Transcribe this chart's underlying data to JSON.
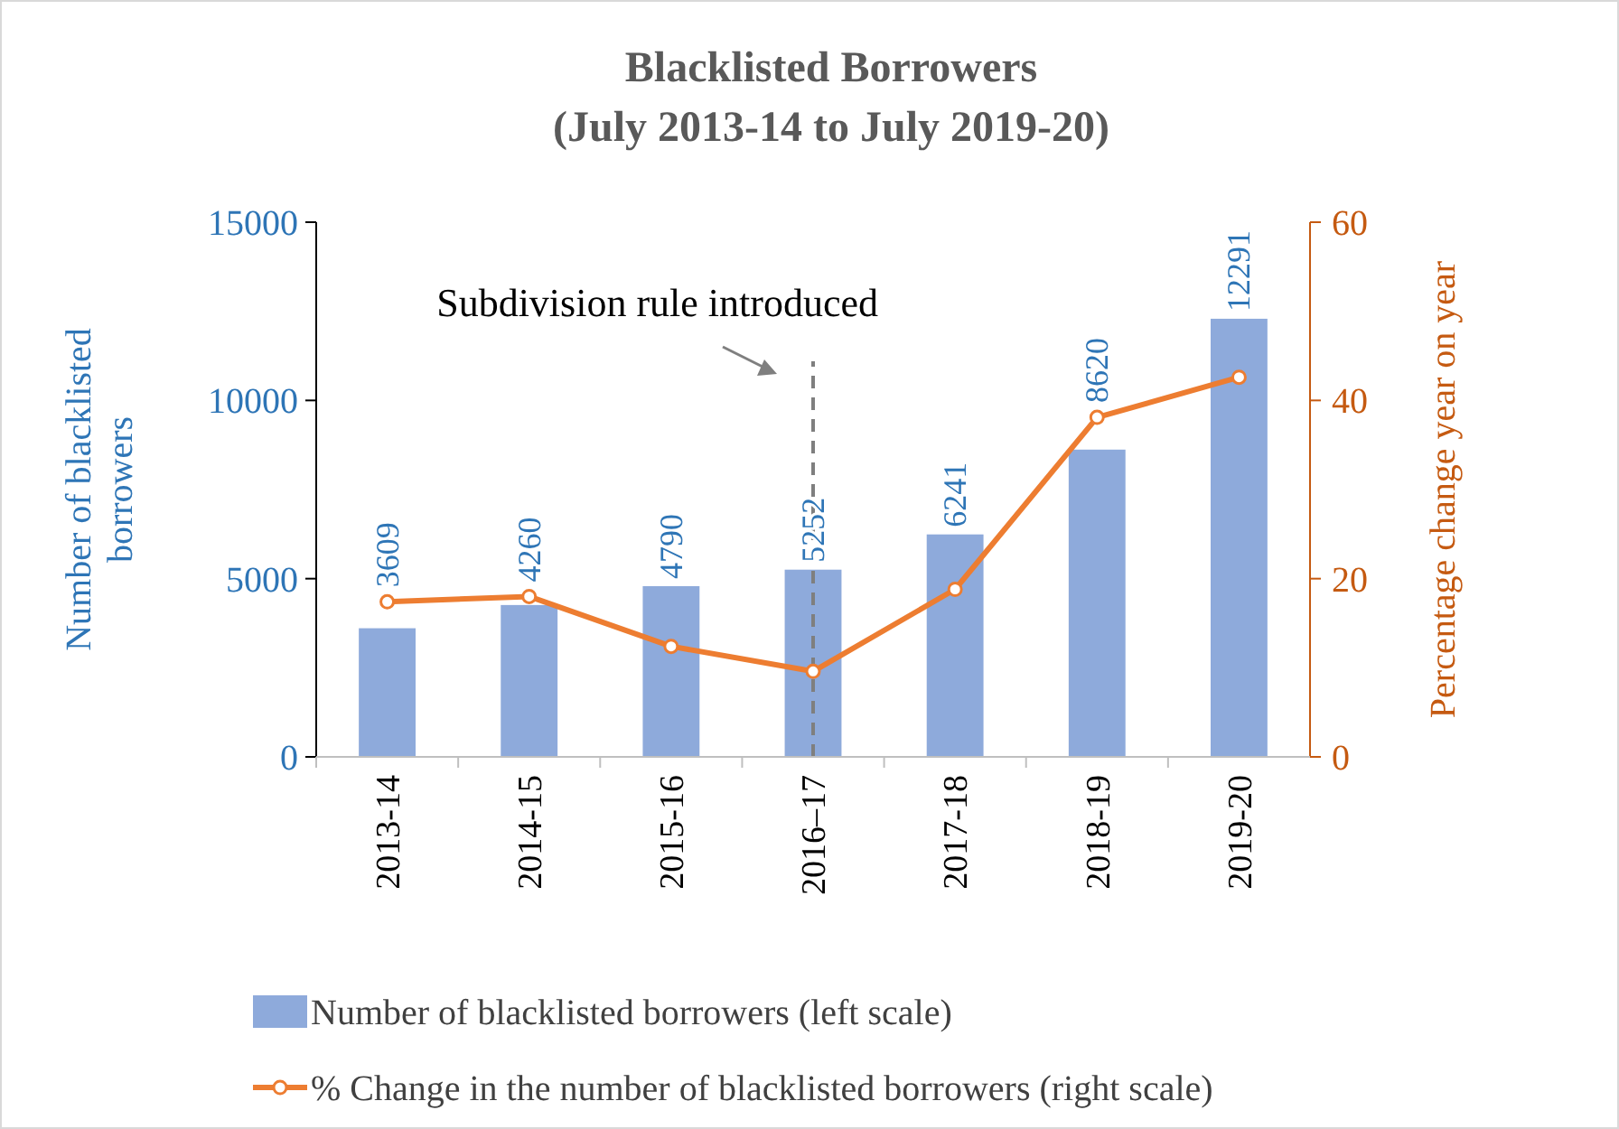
{
  "chart_data": {
    "type": "bar",
    "title": "Blacklisted Borrowers",
    "subtitle": "(July 2013-14 to July 2019-20)",
    "ylabel": "Number of blacklisted borrowers",
    "y2label": "Percentage change year on year",
    "categories": [
      "2013-14",
      "2014-15",
      "2015-16",
      "2016–17",
      "2017-18",
      "2018-19",
      "2019-20"
    ],
    "series": [
      {
        "name": "Number of blacklisted borrowers (left scale)",
        "color": "#8eaadb",
        "values": [
          3609,
          4260,
          4790,
          5252,
          6241,
          8620,
          12291
        ],
        "value_labels": [
          "3609",
          "4260",
          "4790",
          "5252",
          "6241",
          "8620",
          "12291"
        ]
      },
      {
        "name": "% Change in the number of blacklisted borrowers (right scale)",
        "type": "line",
        "axis": "y2",
        "color": "#ed7d31",
        "marker": "circle",
        "values": [
          17.4,
          18.0,
          12.4,
          9.6,
          18.8,
          38.1,
          42.6
        ]
      }
    ],
    "ylim": [
      0,
      15000
    ],
    "yticks": [
      0,
      5000,
      10000,
      15000
    ],
    "y2lim": [
      0,
      60
    ],
    "y2ticks": [
      0,
      20,
      40,
      60
    ],
    "ref_lines": [
      {
        "axis": "x",
        "value": "2016–17",
        "label": "Subdivision rule introduced",
        "color": "#7f7f7f",
        "line_style": "dashed"
      }
    ],
    "legend": "bottom",
    "grid": false
  }
}
